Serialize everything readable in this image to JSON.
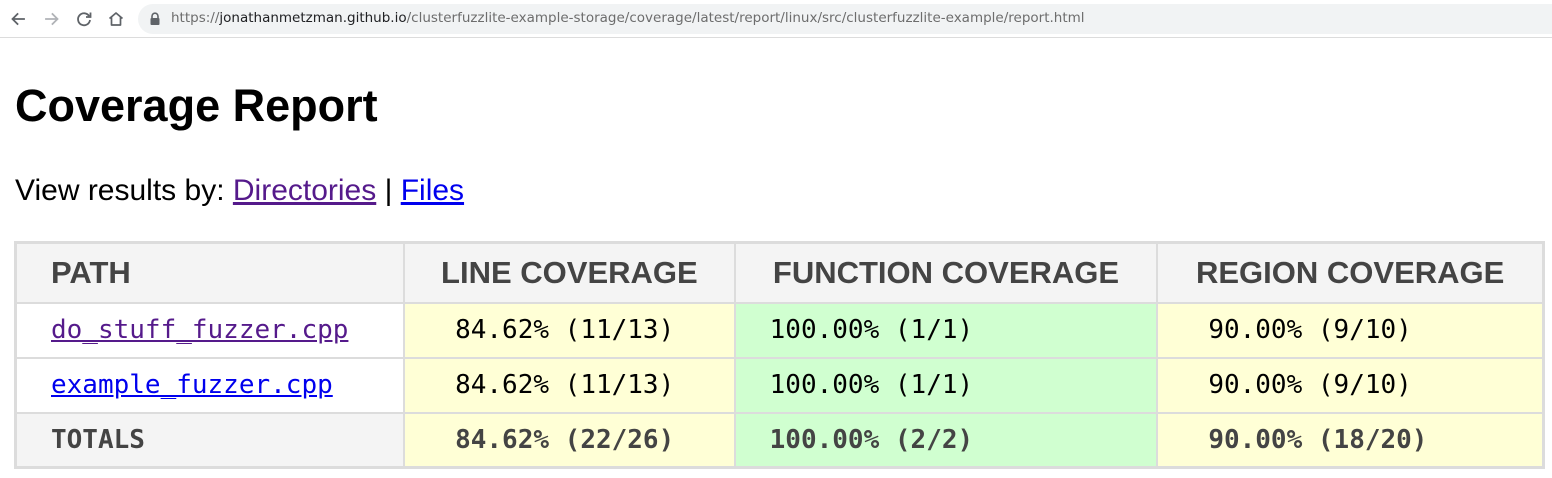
{
  "browser": {
    "url_prefix": "https://",
    "url_host": "jonathanmetzman.github.io",
    "url_path": "/clusterfuzzlite-example-storage/coverage/latest/report/linux/src/clusterfuzzlite-example/report.html",
    "icons": [
      "back-icon",
      "forward-icon",
      "reload-icon",
      "home-icon",
      "lock-icon"
    ]
  },
  "page": {
    "title": "Coverage Report",
    "view_by_label": "View results by: ",
    "directories_link": "Directories",
    "separator": " | ",
    "files_link": "Files"
  },
  "table": {
    "headers": {
      "path": "PATH",
      "line": "LINE COVERAGE",
      "function": "FUNCTION COVERAGE",
      "region": "REGION COVERAGE"
    },
    "rows": [
      {
        "path": "do_stuff_fuzzer.cpp",
        "line": "84.62% (11/13)",
        "function": "100.00% (1/1)",
        "region": "90.00% (9/10)"
      },
      {
        "path": "example_fuzzer.cpp",
        "line": "84.62% (11/13)",
        "function": "100.00% (1/1)",
        "region": "90.00% (9/10)"
      }
    ],
    "totals": {
      "label": "TOTALS",
      "line": "84.62% (22/26)",
      "function": "100.00% (2/2)",
      "region": "90.00% (18/20)"
    }
  },
  "colors": {
    "partial_coverage": "#ffffd6",
    "full_coverage": "#d0ffd0",
    "header_bg": "#f4f4f4",
    "border": "#dcdcdc",
    "visited_link": "#551a8b",
    "link": "#0000ee"
  }
}
